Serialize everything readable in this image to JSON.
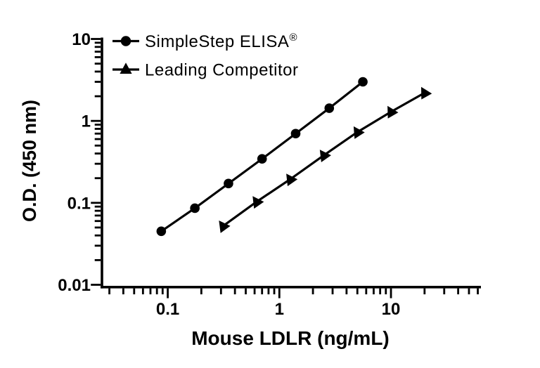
{
  "figure": {
    "background_color": "#ffffff",
    "ink_color": "#000000"
  },
  "legend": {
    "items": [
      {
        "label": "SimpleStep ELISA",
        "superscript": "®",
        "marker": "circle"
      },
      {
        "label": "Leading Competitor",
        "superscript": "",
        "marker": "triangle"
      }
    ]
  },
  "chart_data": {
    "type": "line",
    "x_scale": "log",
    "y_scale": "log",
    "title": "",
    "xlabel": "Mouse LDLR (ng/mL)",
    "ylabel": "O.D. (450 nm)",
    "xlim": [
      0.025,
      64
    ],
    "ylim": [
      0.01,
      10
    ],
    "grid": false,
    "legend_position": "top-left",
    "x_major_ticks": [
      0.1,
      1,
      10
    ],
    "x_major_tick_labels": [
      "0.1",
      "1",
      "10"
    ],
    "x_minor_ticks": [
      0.03,
      0.04,
      0.05,
      0.06,
      0.07,
      0.08,
      0.09,
      0.2,
      0.3,
      0.4,
      0.5,
      0.6,
      0.7,
      0.8,
      0.9,
      2,
      3,
      4,
      5,
      6,
      7,
      8,
      9,
      20,
      30,
      40,
      50,
      60
    ],
    "y_major_ticks": [
      10,
      1,
      0.1,
      0.01
    ],
    "y_major_tick_labels": [
      "10",
      "1",
      "0.1",
      "0.01"
    ],
    "y_minor_ticks": [
      0.02,
      0.03,
      0.04,
      0.05,
      0.06,
      0.07,
      0.08,
      0.09,
      0.2,
      0.3,
      0.4,
      0.5,
      0.6,
      0.7,
      0.8,
      0.9,
      2,
      3,
      4,
      5,
      6,
      7,
      8,
      9
    ],
    "series": [
      {
        "name": "SimpleStep ELISA®",
        "marker": "circle",
        "color": "#000000",
        "points": [
          {
            "x": 0.0875,
            "y": 0.045
          },
          {
            "x": 0.175,
            "y": 0.086
          },
          {
            "x": 0.35,
            "y": 0.172
          },
          {
            "x": 0.7,
            "y": 0.344
          },
          {
            "x": 1.4,
            "y": 0.7
          },
          {
            "x": 2.8,
            "y": 1.43
          },
          {
            "x": 5.6,
            "y": 3.0
          }
        ]
      },
      {
        "name": "Leading Competitor",
        "marker": "triangle",
        "color": "#000000",
        "points": [
          {
            "x": 0.3125,
            "y": 0.052
          },
          {
            "x": 0.625,
            "y": 0.103
          },
          {
            "x": 1.25,
            "y": 0.194
          },
          {
            "x": 2.5,
            "y": 0.38
          },
          {
            "x": 5,
            "y": 0.73
          },
          {
            "x": 10,
            "y": 1.29
          },
          {
            "x": 20,
            "y": 2.2
          }
        ]
      }
    ]
  }
}
